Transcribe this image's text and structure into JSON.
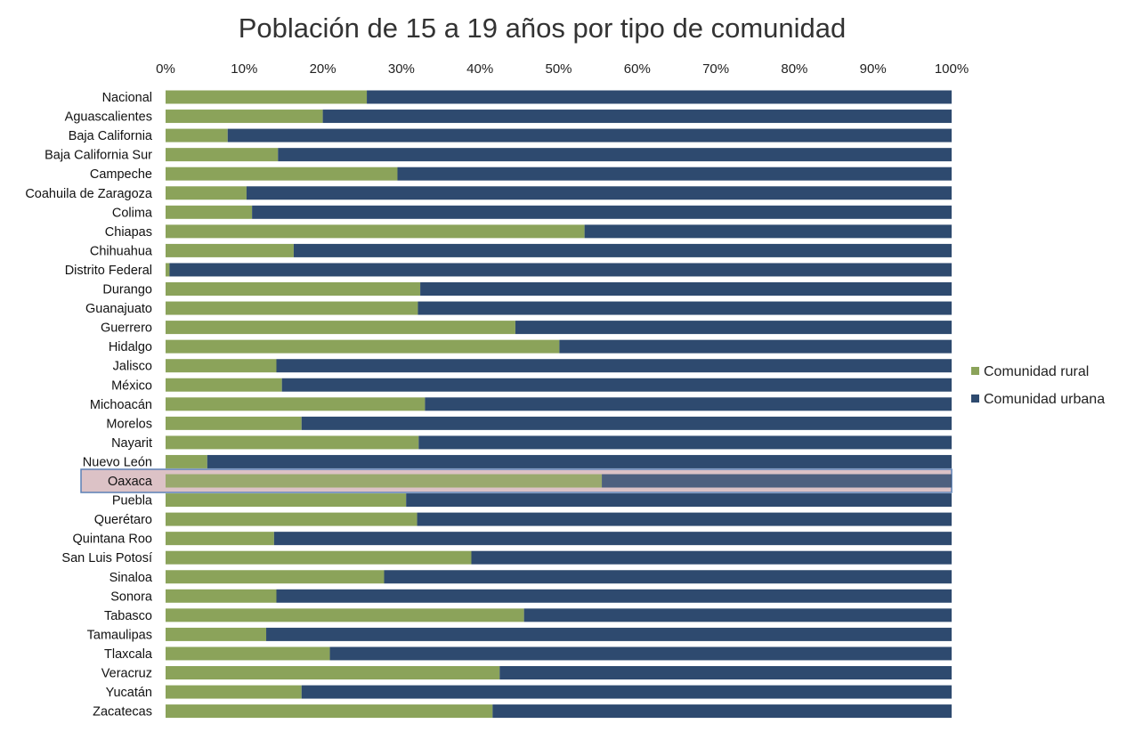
{
  "chart_data": {
    "type": "bar",
    "orientation": "horizontal",
    "stacked": "percent",
    "title": "Población de 15 a 19 años por tipo de comunidad",
    "xlabel": "",
    "ylabel": "",
    "xlim": [
      0,
      100
    ],
    "x_ticks": [
      "0%",
      "10%",
      "20%",
      "30%",
      "40%",
      "50%",
      "60%",
      "70%",
      "80%",
      "90%",
      "100%"
    ],
    "legend_position": "right",
    "highlighted_category": "Oaxaca",
    "categories": [
      "Nacional",
      "Aguascalientes",
      "Baja California",
      "Baja California Sur",
      "Campeche",
      "Coahuila de Zaragoza",
      "Colima",
      "Chiapas",
      "Chihuahua",
      "Distrito Federal",
      "Durango",
      "Guanajuato",
      "Guerrero",
      "Hidalgo",
      "Jalisco",
      "México",
      "Michoacán",
      "Morelos",
      "Nayarit",
      "Nuevo León",
      "Oaxaca",
      "Puebla",
      "Querétaro",
      "Quintana Roo",
      "San Luis Potosí",
      "Sinaloa",
      "Sonora",
      "Tabasco",
      "Tamaulipas",
      "Tlaxcala",
      "Veracruz",
      "Yucatán",
      "Zacatecas"
    ],
    "series": [
      {
        "name": "Comunidad rural",
        "color": "#8ba35a",
        "values": [
          25.6,
          20.0,
          7.9,
          14.3,
          29.5,
          10.3,
          11.0,
          53.3,
          16.3,
          0.5,
          32.4,
          32.1,
          44.5,
          50.1,
          14.1,
          14.8,
          33.0,
          17.3,
          32.2,
          5.3,
          55.5,
          30.6,
          32.0,
          13.8,
          38.9,
          27.8,
          14.1,
          45.6,
          12.8,
          20.9,
          42.5,
          17.3,
          41.6
        ]
      },
      {
        "name": "Comunidad urbana",
        "color": "#2e4a6f",
        "values": [
          74.4,
          80.0,
          92.1,
          85.7,
          70.5,
          89.7,
          89.0,
          46.7,
          83.7,
          99.5,
          67.6,
          67.9,
          55.5,
          49.9,
          85.9,
          85.2,
          67.0,
          82.7,
          67.8,
          94.7,
          44.5,
          69.4,
          68.0,
          86.2,
          61.1,
          72.2,
          85.9,
          54.4,
          87.2,
          79.1,
          57.5,
          82.7,
          58.4
        ]
      }
    ]
  },
  "colors": {
    "highlight_fill": "#dcc2c6",
    "highlight_stroke": "#5b80b5"
  }
}
